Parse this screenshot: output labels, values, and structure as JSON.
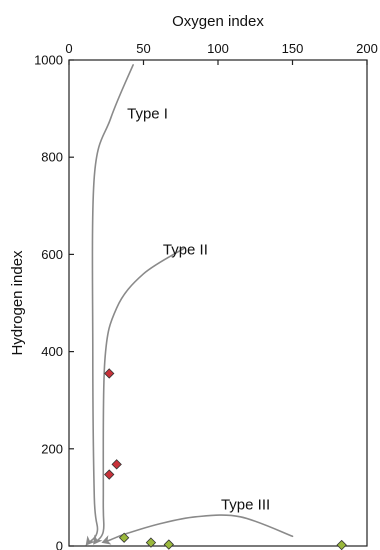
{
  "chart_data": {
    "type": "scatter",
    "title": "",
    "xlabel": "Oxygen index",
    "ylabel": "Hydrogen index",
    "x_axis_position": "top",
    "xlim": [
      0,
      200
    ],
    "ylim": [
      0,
      1000
    ],
    "xticks": [
      0,
      50,
      100,
      150,
      200
    ],
    "yticks": [
      0,
      200,
      400,
      600,
      800,
      1000
    ],
    "grid": false,
    "legend": "none",
    "series": [
      {
        "color": "#c8323a",
        "marker": "diamond",
        "points": [
          {
            "x": 27,
            "y": 355
          },
          {
            "x": 32,
            "y": 168
          },
          {
            "x": 27,
            "y": 147
          }
        ]
      },
      {
        "color": "#9ab83c",
        "marker": "diamond",
        "points": [
          {
            "x": 37,
            "y": 17
          },
          {
            "x": 55,
            "y": 7
          },
          {
            "x": 67,
            "y": 3
          },
          {
            "x": 183,
            "y": 2
          }
        ]
      }
    ],
    "reference_curves": [
      {
        "label": "Type I",
        "label_at": {
          "x": 39,
          "y": 880
        },
        "color": "#8a8a8a",
        "points": [
          [
            43,
            990
          ],
          [
            28,
            880
          ],
          [
            17,
            760
          ],
          [
            16,
            400
          ],
          [
            17,
            100
          ],
          [
            19,
            30
          ],
          [
            12,
            4
          ]
        ]
      },
      {
        "label": "Type II",
        "label_at": {
          "x": 63,
          "y": 600
        },
        "color": "#8a8a8a",
        "points": [
          [
            77,
            612
          ],
          [
            50,
            560
          ],
          [
            32,
            490
          ],
          [
            24,
            380
          ],
          [
            23,
            100
          ],
          [
            23,
            30
          ],
          [
            17,
            6
          ]
        ]
      },
      {
        "label": "Type III",
        "label_at": {
          "x": 102,
          "y": 75
        },
        "color": "#8a8a8a",
        "points": [
          [
            150,
            20
          ],
          [
            115,
            60
          ],
          [
            85,
            60
          ],
          [
            60,
            45
          ],
          [
            38,
            25
          ],
          [
            28,
            13
          ],
          [
            23,
            8
          ]
        ]
      }
    ]
  }
}
